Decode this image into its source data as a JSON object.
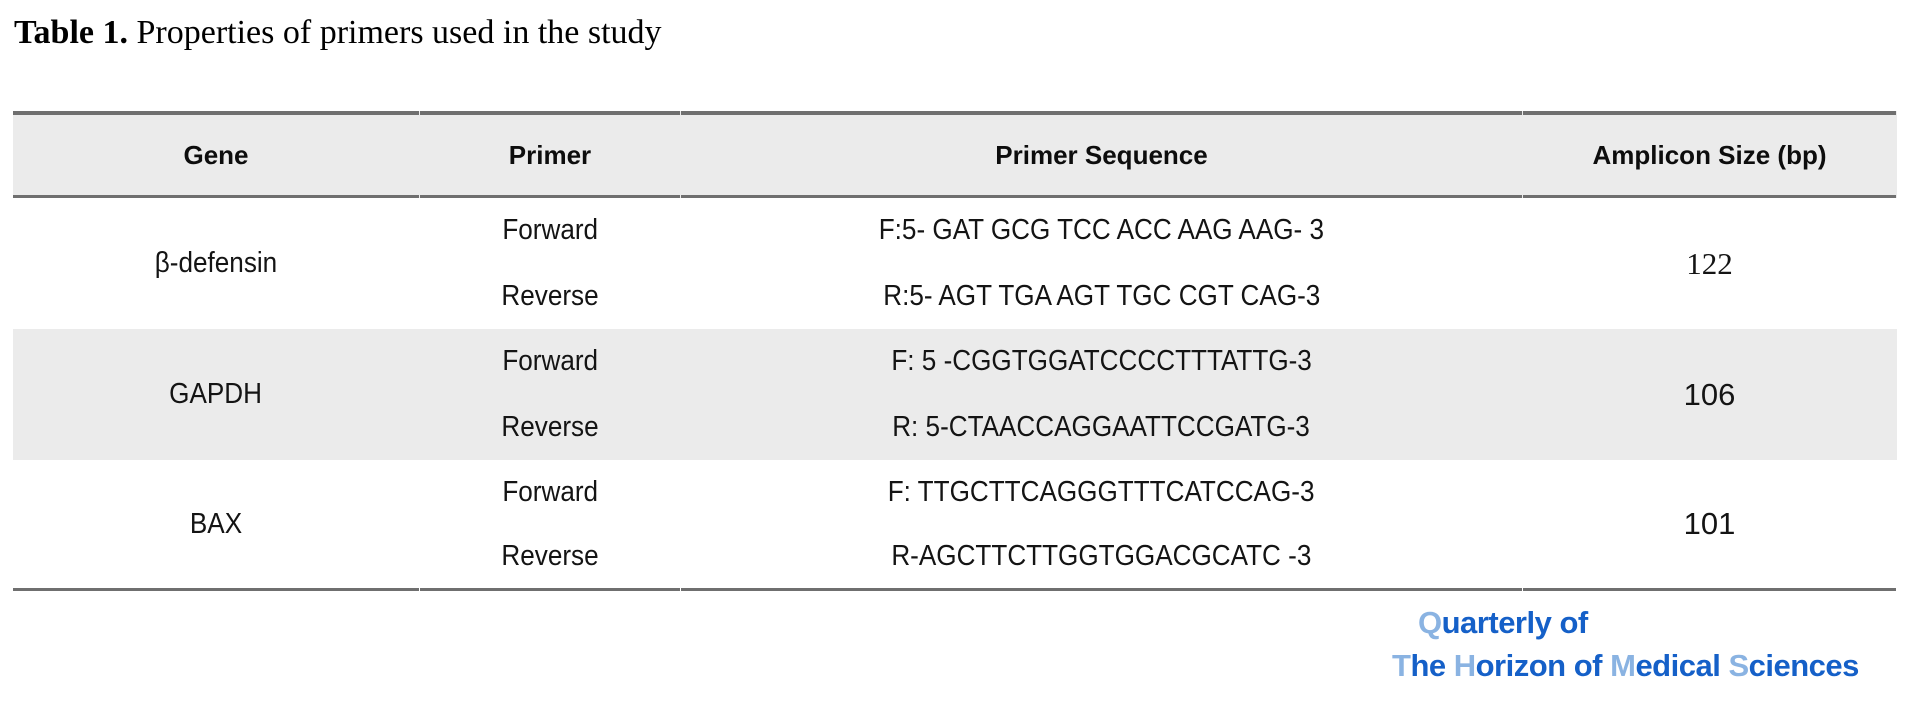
{
  "caption": {
    "label": "Table 1.",
    "text": " Properties of primers used in the study"
  },
  "table": {
    "headers": [
      "Gene",
      "Primer",
      "Primer Sequence",
      "Amplicon Size (bp)"
    ],
    "rows": [
      {
        "gene": "β-defensin",
        "primers": [
          {
            "direction": "Forward",
            "sequence": "F:5- GAT GCG TCC ACC AAG AAG- 3"
          },
          {
            "direction": "Reverse",
            "sequence": "R:5- AGT TGA AGT TGC CGT CAG-3"
          }
        ],
        "amplicon_size": "122"
      },
      {
        "gene": "GAPDH",
        "primers": [
          {
            "direction": "Forward",
            "sequence": "F: 5 -CGGTGGATCCCCTTTATTG-3"
          },
          {
            "direction": "Reverse",
            "sequence": "R: 5-CTAACCAGGAATTCCGATG-3"
          }
        ],
        "amplicon_size": "106"
      },
      {
        "gene": "BAX",
        "primers": [
          {
            "direction": "Forward",
            "sequence": "F: TTGCTTCAGGGTTTCATCCAG-3"
          },
          {
            "direction": "Reverse",
            "sequence": "R-AGCTTCTTGGTGGACGCATC -3"
          }
        ],
        "amplicon_size": "101"
      }
    ]
  },
  "logo": {
    "line1": [
      {
        "text": "Q"
      },
      {
        "text": "uarterly of"
      }
    ],
    "line2": [
      {
        "text": "T"
      },
      {
        "text": "he "
      },
      {
        "text": "H"
      },
      {
        "text": "orizon of "
      },
      {
        "text": "M"
      },
      {
        "text": "edical "
      },
      {
        "text": "S"
      },
      {
        "text": "ciences"
      }
    ]
  },
  "colors": {
    "header_bg": "#ebebeb",
    "alt_row_bg": "#ebebeb",
    "rule_gray": "#6f6f6f",
    "logo_dark_blue": "#1560c8",
    "logo_light_blue": "#8ab3e2"
  }
}
